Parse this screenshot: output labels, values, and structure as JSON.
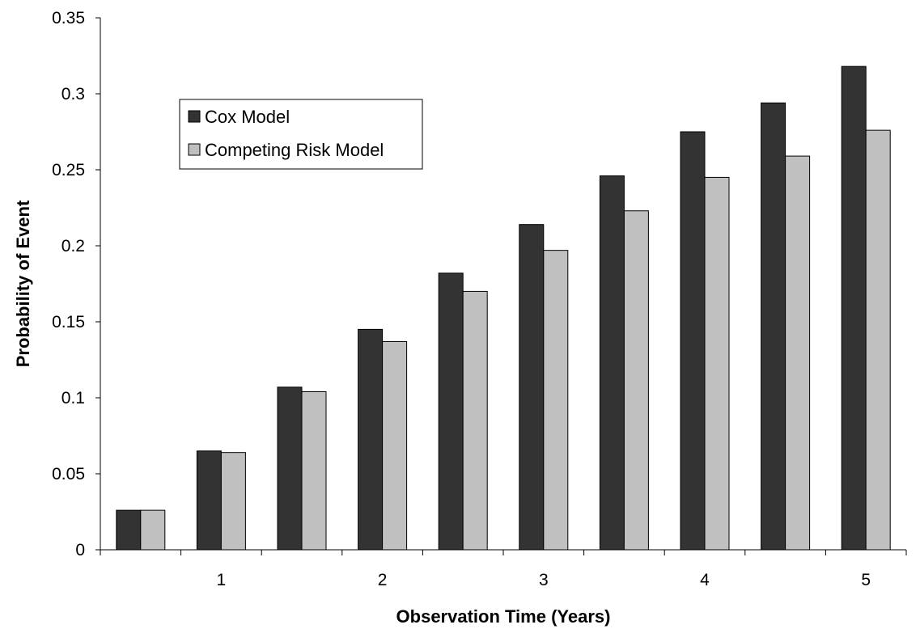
{
  "chart_data": {
    "type": "bar",
    "title": "",
    "xlabel": "Observation Time (Years)",
    "ylabel": "Probability of Event",
    "ylim": [
      0,
      0.35
    ],
    "yticks": [
      "0",
      "0.05",
      "0.1",
      "0.15",
      "0.2",
      "0.25",
      "0.3",
      "0.35"
    ],
    "x": [
      0.5,
      1,
      1.5,
      2,
      2.5,
      3,
      3.5,
      4,
      4.5,
      5
    ],
    "xtick_labels": [
      "",
      "1",
      "",
      "2",
      "",
      "3",
      "",
      "4",
      "",
      "5"
    ],
    "grid": false,
    "legend_position": "top-left",
    "series": [
      {
        "name": "Cox Model",
        "color": "#333333",
        "values": [
          0.026,
          0.065,
          0.107,
          0.145,
          0.182,
          0.214,
          0.246,
          0.275,
          0.294,
          0.318
        ]
      },
      {
        "name": "Competing Risk Model",
        "color": "#c0c0c0",
        "values": [
          0.026,
          0.064,
          0.104,
          0.137,
          0.17,
          0.197,
          0.223,
          0.245,
          0.259,
          0.276
        ]
      }
    ]
  }
}
